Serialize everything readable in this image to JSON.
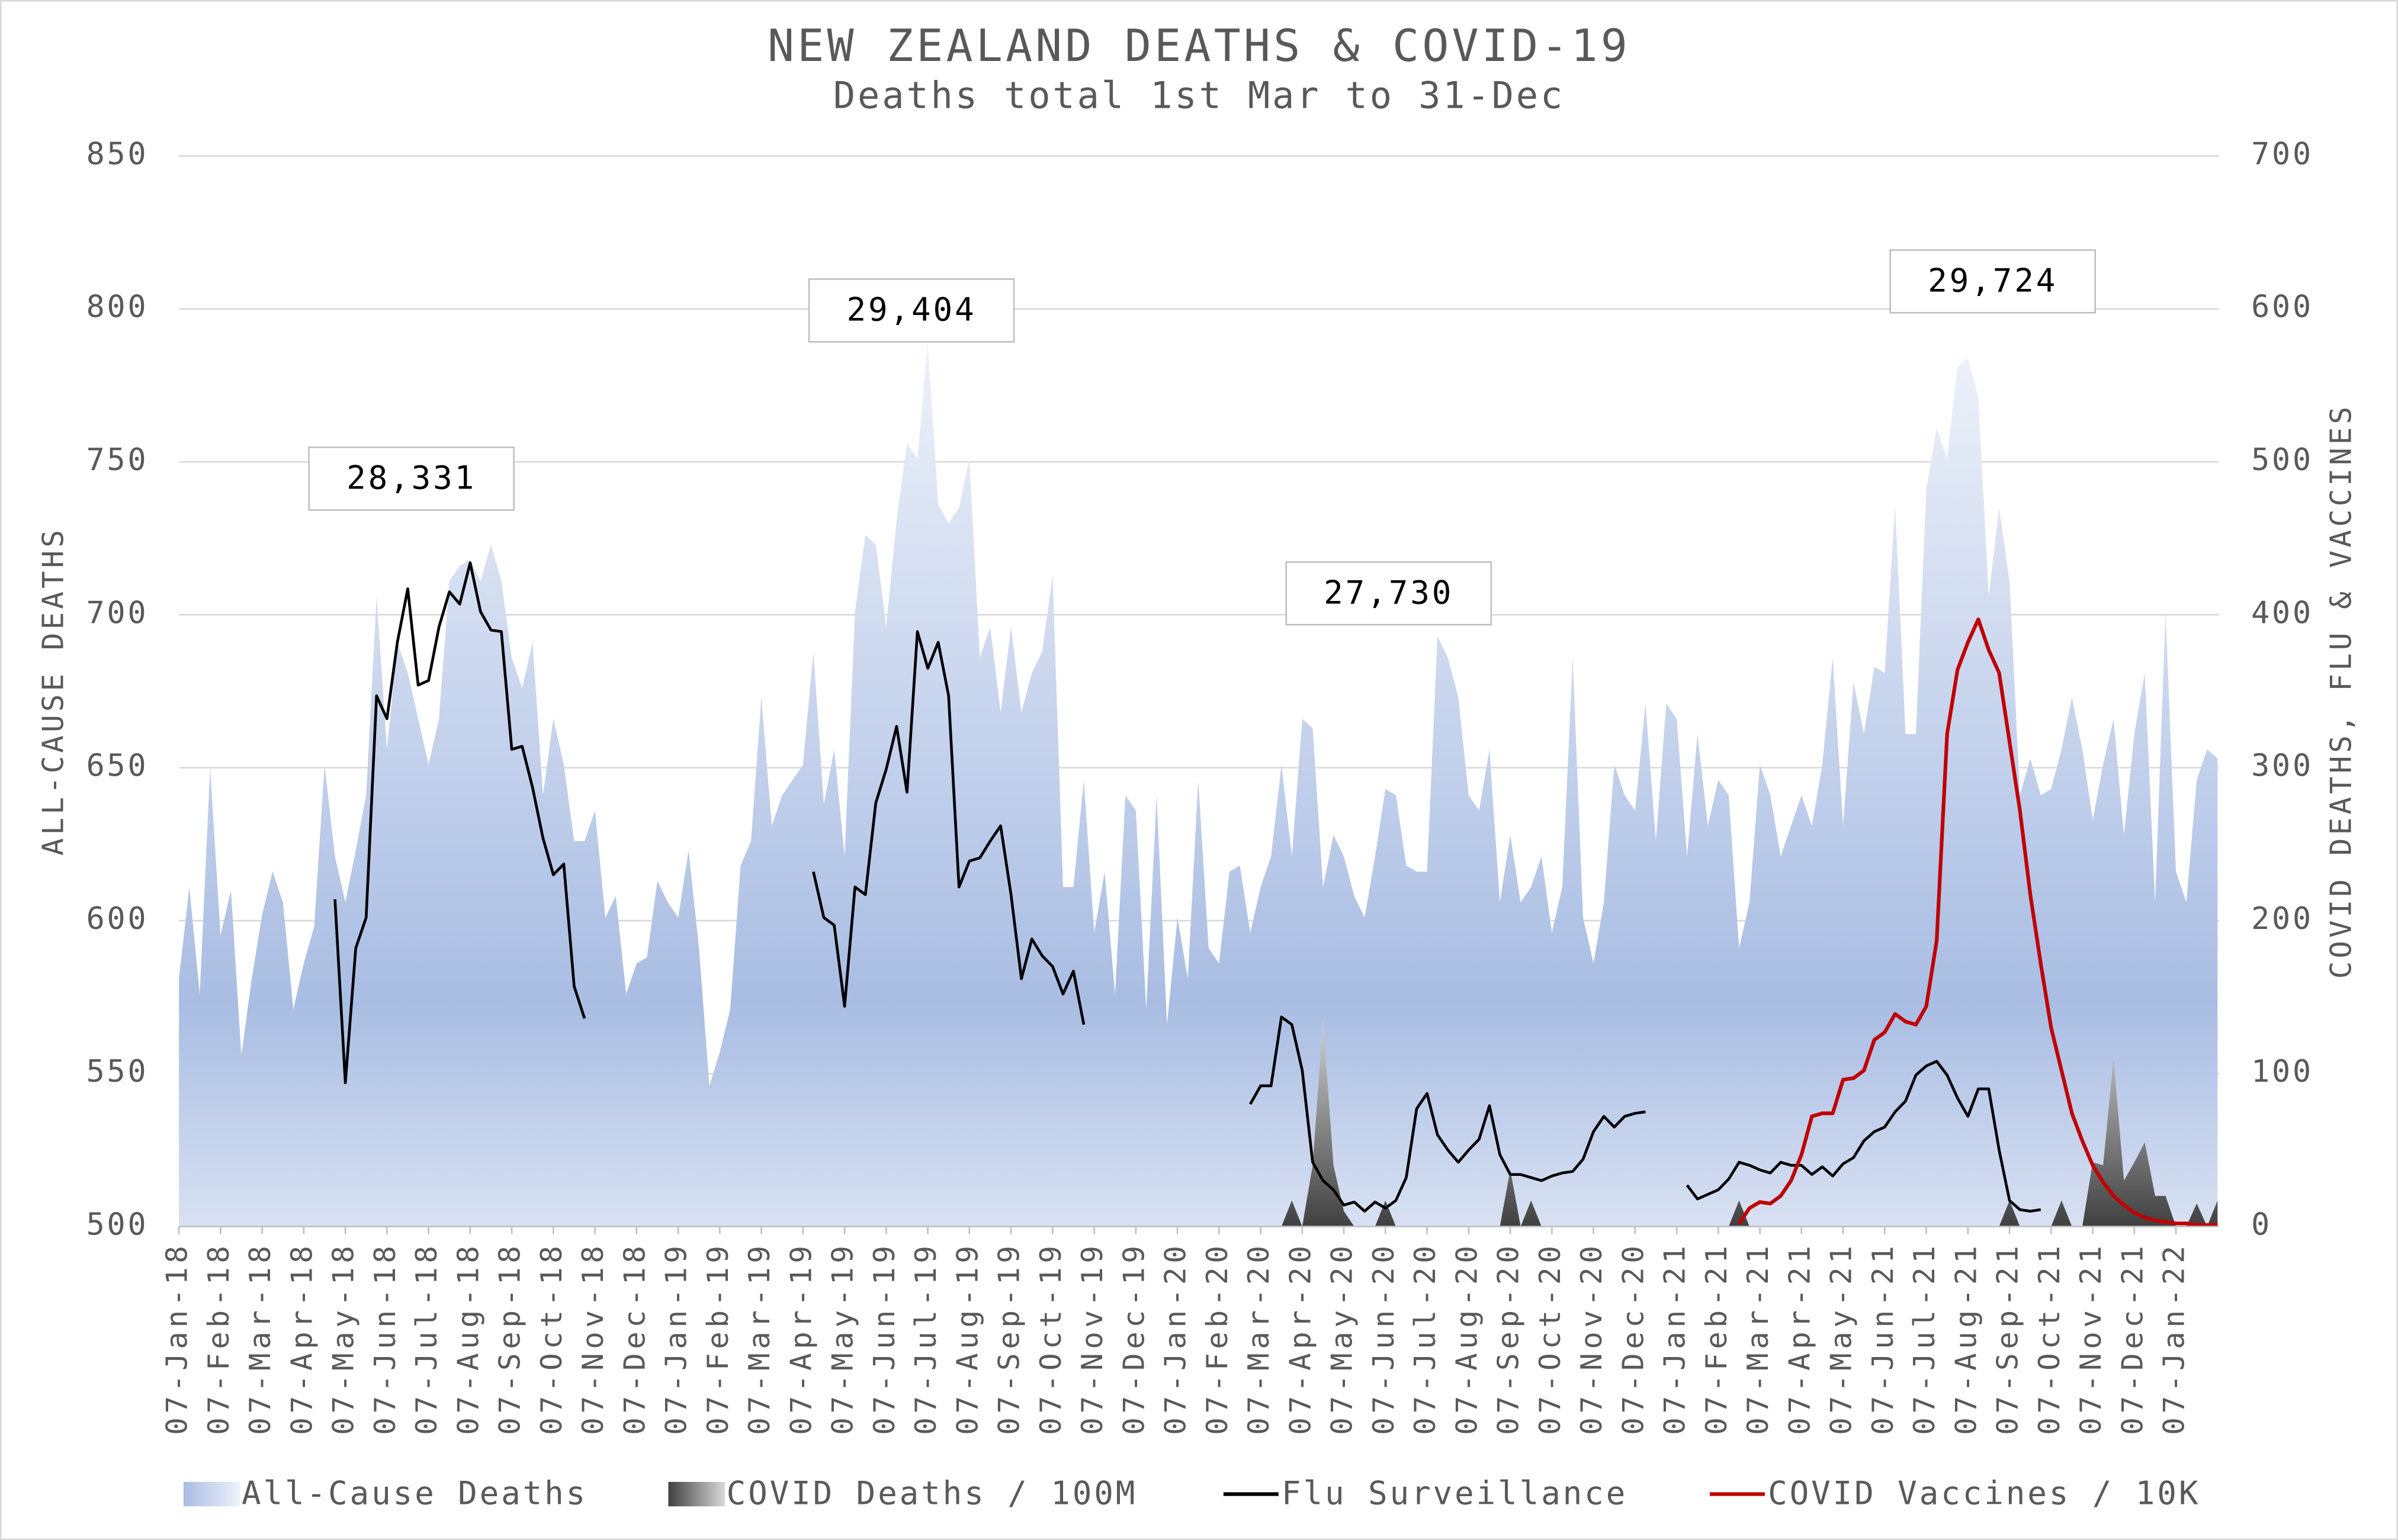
{
  "chart_data": {
    "type": "line",
    "title": "NEW ZEALAND DEATHS & COVID-19",
    "subtitle": "Deaths total 1st Mar to 31-Dec",
    "ylabel": "ALL-CAUSE DEATHS",
    "y2label": "COVID DEATHS, FLU & VACCINES",
    "ylim": [
      500,
      850
    ],
    "yticks": [
      500,
      550,
      600,
      650,
      700,
      750,
      800,
      850
    ],
    "y2lim": [
      0,
      700
    ],
    "y2ticks": [
      0,
      100,
      200,
      300,
      400,
      500,
      600,
      700
    ],
    "grid": true,
    "legend": "bottom",
    "annotations": [
      "28,331",
      "29,404",
      "27,730",
      "29,724"
    ],
    "categories": [
      "07-Jan-18",
      null,
      null,
      null,
      "07-Feb-18",
      null,
      null,
      null,
      "07-Mar-18",
      null,
      null,
      null,
      "07-Apr-18",
      null,
      null,
      null,
      "07-May-18",
      null,
      null,
      null,
      "07-Jun-18",
      null,
      null,
      null,
      "07-Jul-18",
      null,
      null,
      null,
      "07-Aug-18",
      null,
      null,
      null,
      "07-Sep-18",
      null,
      null,
      null,
      "07-Oct-18",
      null,
      null,
      null,
      "07-Nov-18",
      null,
      null,
      null,
      "07-Dec-18",
      null,
      null,
      null,
      "07-Jan-19",
      null,
      null,
      null,
      "07-Feb-19",
      null,
      null,
      null,
      "07-Mar-19",
      null,
      null,
      null,
      "07-Apr-19",
      null,
      null,
      null,
      "07-May-19",
      null,
      null,
      null,
      "07-Jun-19",
      null,
      null,
      null,
      "07-Jul-19",
      null,
      null,
      null,
      "07-Aug-19",
      null,
      null,
      null,
      "07-Sep-19",
      null,
      null,
      null,
      "07-Oct-19",
      null,
      null,
      null,
      "07-Nov-19",
      null,
      null,
      null,
      "07-Dec-19",
      null,
      null,
      null,
      "07-Jan-20",
      null,
      null,
      null,
      "07-Feb-20",
      null,
      null,
      null,
      "07-Mar-20",
      null,
      null,
      null,
      "07-Apr-20",
      null,
      null,
      null,
      "07-May-20",
      null,
      null,
      null,
      "07-Jun-20",
      null,
      null,
      null,
      "07-Jul-20",
      null,
      null,
      null,
      "07-Aug-20",
      null,
      null,
      null,
      "07-Sep-20",
      null,
      null,
      null,
      "07-Oct-20",
      null,
      null,
      null,
      "07-Nov-20",
      null,
      null,
      null,
      "07-Dec-20",
      null,
      null,
      null,
      "07-Jan-21",
      null,
      null,
      null,
      "07-Feb-21",
      null,
      null,
      null,
      "07-Mar-21",
      null,
      null,
      null,
      "07-Apr-21",
      null,
      null,
      null,
      "07-May-21",
      null,
      null,
      null,
      "07-Jun-21",
      null,
      null,
      null,
      "07-Jul-21",
      null,
      null,
      null,
      "07-Aug-21",
      null,
      null,
      null,
      "07-Sep-21",
      null,
      null,
      null,
      "07-Oct-21",
      null,
      null,
      null,
      "07-Nov-21",
      null,
      null,
      null,
      "07-Dec-21",
      null,
      null,
      null,
      "07-Jan-22",
      null,
      null,
      null,
      null
    ],
    "series": [
      {
        "name": "All-Cause Deaths",
        "type": "area",
        "color": "#aec0e4",
        "values": [
          581,
          611,
          576,
          650,
          595,
          610,
          556,
          581,
          602,
          616,
          606,
          571,
          586,
          598,
          651,
          621,
          606,
          623,
          641,
          706,
          656,
          691,
          681,
          666,
          651,
          666,
          711,
          716,
          718,
          711,
          723,
          711,
          686,
          676,
          691,
          641,
          666,
          651,
          626,
          626,
          636,
          601,
          608,
          576,
          586,
          588,
          613,
          606,
          601,
          623,
          591,
          546,
          557,
          571,
          618,
          626,
          673,
          631,
          641,
          646,
          651,
          688,
          638,
          656,
          621,
          701,
          726,
          723,
          696,
          731,
          756,
          751,
          789,
          736,
          730,
          735,
          751,
          686,
          696,
          668,
          696,
          668,
          681,
          688,
          713,
          611,
          611,
          646,
          596,
          616,
          576,
          641,
          636,
          571,
          641,
          566,
          601,
          581,
          646,
          591,
          586,
          616,
          618,
          596,
          611,
          621,
          651,
          621,
          666,
          663,
          611,
          628,
          621,
          608,
          601,
          621,
          643,
          641,
          618,
          616,
          616,
          693,
          686,
          673,
          641,
          636,
          656,
          606,
          628,
          606,
          611,
          621,
          596,
          611,
          686,
          601,
          586,
          606,
          651,
          641,
          636,
          671,
          626,
          671,
          666,
          621,
          661,
          631,
          646,
          641,
          591,
          606,
          651,
          641,
          621,
          631,
          641,
          631,
          651,
          686,
          631,
          678,
          661,
          683,
          681,
          736,
          661,
          661,
          741,
          761,
          751,
          781,
          784,
          771,
          706,
          735,
          711,
          641,
          653,
          641,
          643,
          656,
          673,
          656,
          633,
          651,
          666,
          628,
          661,
          681,
          606,
          701,
          616,
          606,
          646,
          656,
          653
        ]
      },
      {
        "name": "COVID Deaths / 100M",
        "type": "area",
        "axis": "y2",
        "color": "#808080",
        "values": [
          null,
          null,
          null,
          null,
          null,
          null,
          null,
          null,
          null,
          null,
          null,
          null,
          null,
          null,
          null,
          null,
          null,
          null,
          null,
          null,
          null,
          null,
          null,
          null,
          null,
          null,
          null,
          null,
          null,
          null,
          null,
          null,
          null,
          null,
          null,
          null,
          null,
          null,
          null,
          null,
          null,
          null,
          null,
          null,
          null,
          null,
          null,
          null,
          null,
          null,
          null,
          null,
          null,
          null,
          null,
          null,
          null,
          null,
          null,
          null,
          null,
          null,
          null,
          null,
          null,
          null,
          null,
          null,
          null,
          null,
          null,
          null,
          null,
          null,
          null,
          null,
          null,
          null,
          null,
          null,
          null,
          null,
          null,
          null,
          null,
          null,
          null,
          null,
          null,
          null,
          null,
          null,
          null,
          null,
          null,
          null,
          null,
          null,
          null,
          null,
          0,
          0,
          0,
          0,
          0,
          0,
          0,
          17,
          0,
          40,
          135,
          40,
          10,
          0,
          0,
          0,
          17,
          0,
          0,
          0,
          0,
          0,
          0,
          0,
          0,
          0,
          0,
          0,
          37,
          0,
          17,
          0,
          0,
          0,
          0,
          0,
          0,
          0,
          0,
          0,
          0,
          0,
          0,
          0,
          0,
          0,
          0,
          0,
          0,
          0,
          17,
          0,
          0,
          0,
          0,
          0,
          0,
          0,
          0,
          0,
          0,
          0,
          0,
          0,
          0,
          0,
          0,
          0,
          0,
          0,
          0,
          0,
          0,
          0,
          0,
          0,
          17,
          0,
          0,
          0,
          0,
          17,
          0,
          0,
          42,
          40,
          110,
          30,
          42,
          55,
          20,
          20,
          0,
          0,
          15,
          0,
          17
        ]
      },
      {
        "name": "Flu Surveillance",
        "type": "line",
        "axis": "y2",
        "color": "#000000",
        "values": [
          null,
          null,
          null,
          null,
          null,
          null,
          null,
          null,
          null,
          null,
          null,
          null,
          null,
          null,
          null,
          214,
          94,
          182,
          202,
          347,
          332,
          382,
          417,
          354,
          357,
          392,
          415,
          407,
          434,
          402,
          390,
          389,
          312,
          314,
          287,
          254,
          230,
          237,
          157,
          136,
          null,
          null,
          null,
          null,
          null,
          null,
          null,
          null,
          null,
          null,
          null,
          null,
          null,
          null,
          null,
          null,
          null,
          null,
          null,
          null,
          null,
          232,
          202,
          197,
          144,
          222,
          217,
          277,
          299,
          327,
          284,
          389,
          365,
          382,
          347,
          222,
          239,
          241,
          252,
          262,
          217,
          162,
          188,
          177,
          170,
          152,
          167,
          132,
          null,
          null,
          null,
          null,
          null,
          null,
          null,
          null,
          null,
          null,
          null,
          null,
          null,
          null,
          null,
          80,
          92,
          92,
          137,
          132,
          102,
          42,
          30,
          24,
          14,
          16,
          10,
          16,
          12,
          17,
          32,
          77,
          87,
          60,
          50,
          42,
          50,
          57,
          79,
          47,
          34,
          34,
          32,
          30,
          33,
          35,
          36,
          44,
          62,
          72,
          65,
          72,
          74,
          75,
          null,
          null,
          null,
          27,
          18,
          21,
          24,
          31,
          42,
          40,
          37,
          35,
          42,
          40,
          40,
          34,
          39,
          33,
          41,
          45,
          56,
          62,
          65,
          75,
          82,
          99,
          105,
          108,
          99,
          84,
          72,
          90,
          90,
          50,
          17,
          11,
          10,
          11,
          null,
          null,
          null,
          null,
          null,
          null,
          null,
          null,
          null,
          null,
          null,
          null,
          null,
          null,
          null,
          null,
          null
        ]
      },
      {
        "name": "COVID Vaccines / 10K",
        "type": "line",
        "axis": "y2",
        "color": "#c00000",
        "values": [
          null,
          null,
          null,
          null,
          null,
          null,
          null,
          null,
          null,
          null,
          null,
          null,
          null,
          null,
          null,
          null,
          null,
          null,
          null,
          null,
          null,
          null,
          null,
          null,
          null,
          null,
          null,
          null,
          null,
          null,
          null,
          null,
          null,
          null,
          null,
          null,
          null,
          null,
          null,
          null,
          null,
          null,
          null,
          null,
          null,
          null,
          null,
          null,
          null,
          null,
          null,
          null,
          null,
          null,
          null,
          null,
          null,
          null,
          null,
          null,
          null,
          null,
          null,
          null,
          null,
          null,
          null,
          null,
          null,
          null,
          null,
          null,
          null,
          null,
          null,
          null,
          null,
          null,
          null,
          null,
          null,
          null,
          null,
          null,
          null,
          null,
          null,
          null,
          null,
          null,
          null,
          null,
          null,
          null,
          null,
          null,
          null,
          null,
          null,
          null,
          null,
          null,
          null,
          null,
          null,
          null,
          null,
          null,
          null,
          null,
          null,
          null,
          null,
          null,
          null,
          null,
          null,
          null,
          null,
          null,
          null,
          null,
          null,
          null,
          null,
          null,
          null,
          null,
          null,
          null,
          null,
          null,
          null,
          null,
          null,
          null,
          null,
          null,
          null,
          null,
          null,
          null,
          null,
          null,
          null,
          null,
          null,
          null,
          null,
          null,
          2,
          12,
          16,
          15,
          20,
          30,
          47,
          72,
          74,
          74,
          96,
          97,
          102,
          122,
          127,
          139,
          134,
          132,
          144,
          187,
          322,
          364,
          382,
          397,
          377,
          362,
          317,
          272,
          217,
          172,
          130,
          102,
          74,
          56,
          40,
          29,
          20,
          14,
          9,
          6,
          4,
          3,
          2,
          2,
          1,
          1,
          1
        ]
      }
    ]
  }
}
